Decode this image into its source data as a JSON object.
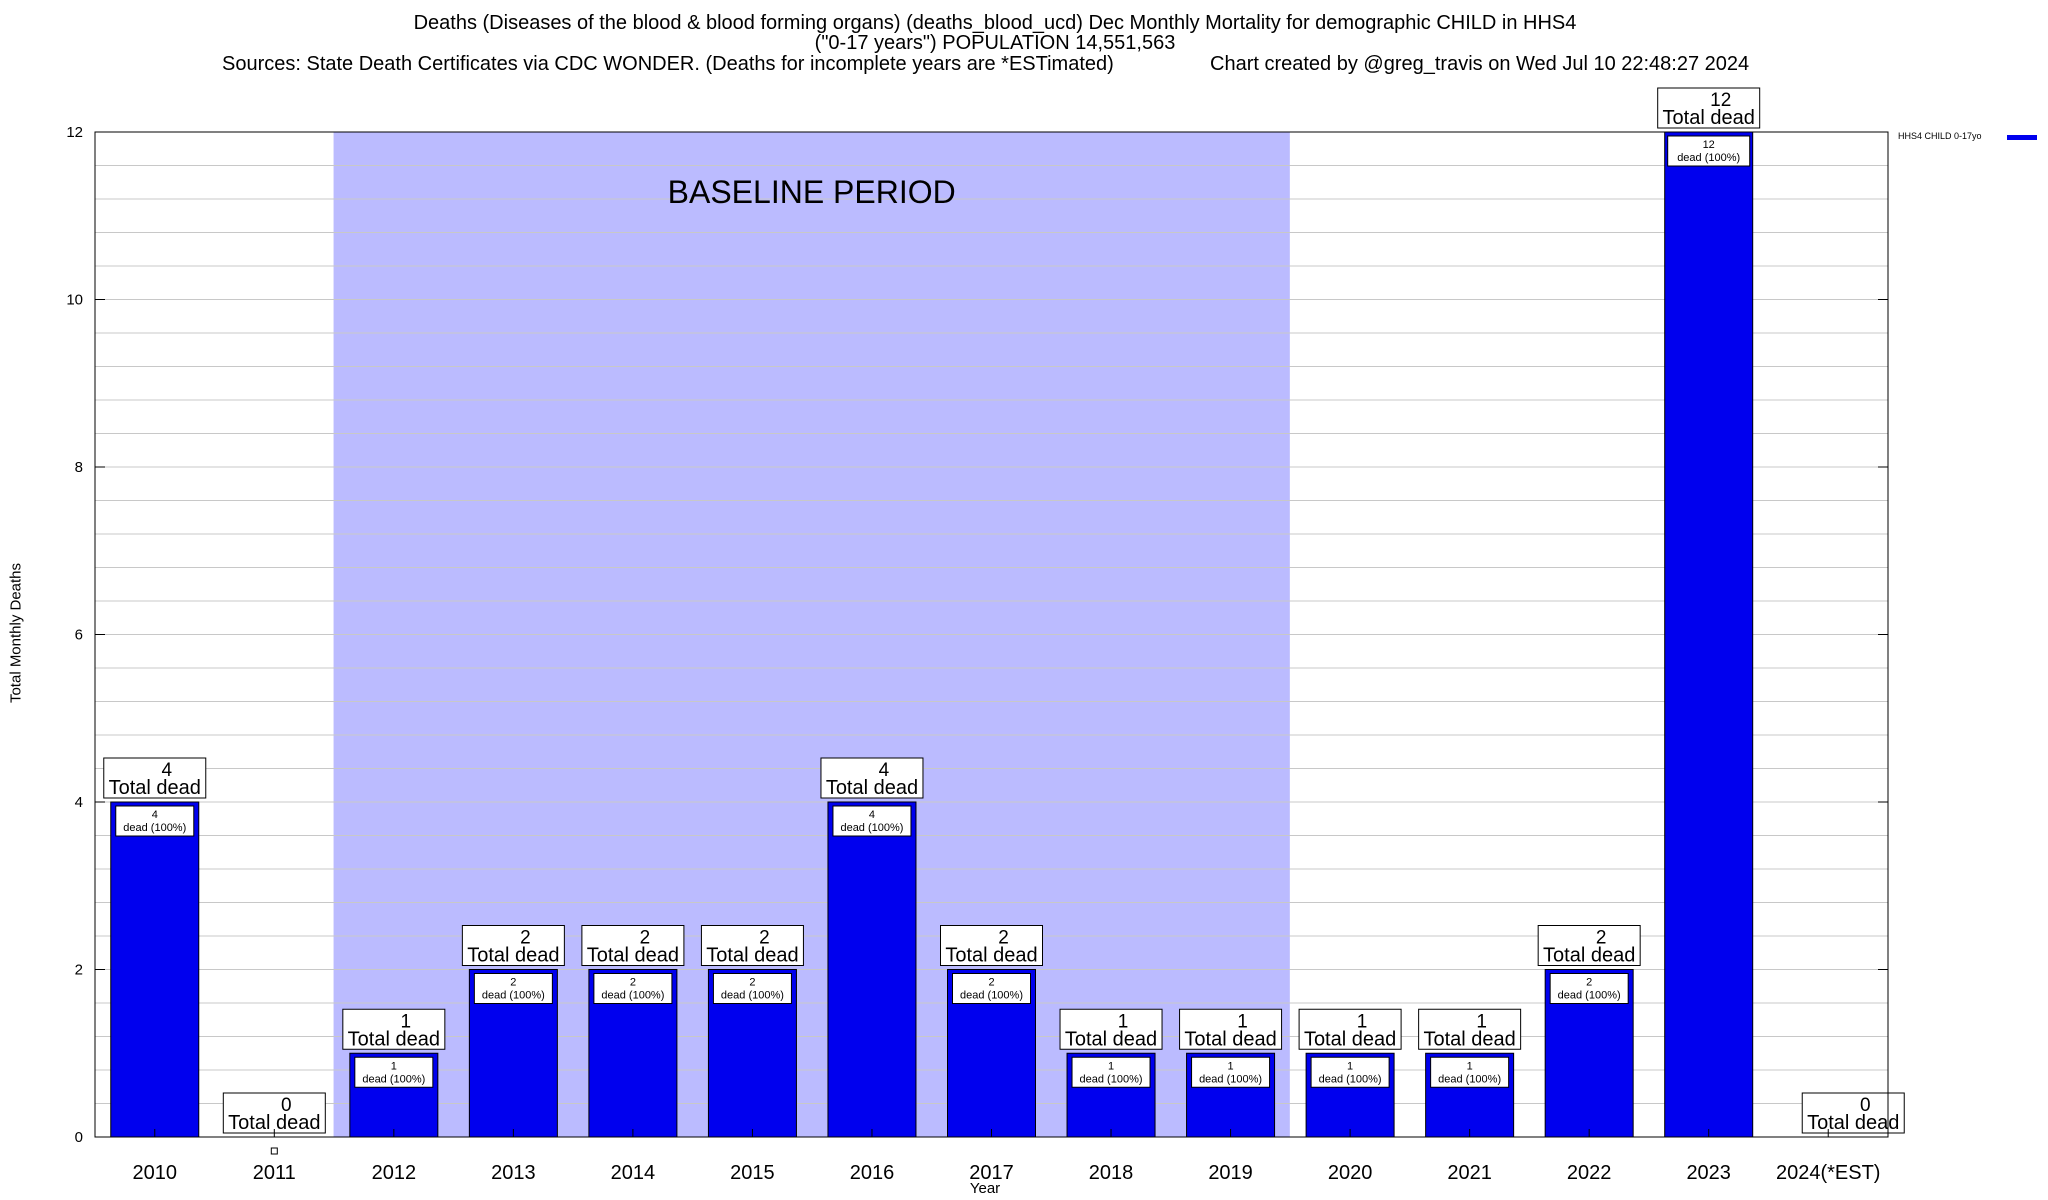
{
  "header": {
    "title_line1": "Deaths (Diseases of the blood & blood forming organs) (deaths_blood_ucd) Dec Monthly Mortality for demographic CHILD in HHS4",
    "title_line2": "(\"0-17 years\") POPULATION 14,551,563",
    "sources": "Sources: State Death Certificates via CDC WONDER. (Deaths for incomplete years are *ESTimated)",
    "credit": "Chart created by @greg_travis on Wed Jul 10 22:48:27 2024"
  },
  "legend": {
    "label": "HHS4 CHILD 0-17yo",
    "color": "#0000ee"
  },
  "chart_data": {
    "type": "bar",
    "categories": [
      "2010",
      "2011",
      "2012",
      "2013",
      "2014",
      "2015",
      "2016",
      "2017",
      "2018",
      "2019",
      "2020",
      "2021",
      "2022",
      "2023",
      "2024(*EST)"
    ],
    "series": [
      {
        "name": "HHS4 CHILD 0-17yo",
        "values": [
          4,
          0,
          1,
          2,
          2,
          2,
          4,
          2,
          1,
          1,
          1,
          1,
          2,
          12,
          0
        ]
      }
    ],
    "xlabel": "Year",
    "ylabel": "Total Monthly Deaths",
    "ylim": [
      0,
      12
    ],
    "yticks": [
      0,
      2,
      4,
      6,
      8,
      10,
      12
    ],
    "grid": true,
    "legend_position": "top-right",
    "total_label_suffix": "Total dead",
    "inner_label_suffix": "dead (100%)",
    "baseline_period": {
      "label": "BASELINE PERIOD",
      "from": "2012",
      "to": "2019",
      "color": "#bbbbff"
    },
    "bar_color": "#0000ee"
  }
}
